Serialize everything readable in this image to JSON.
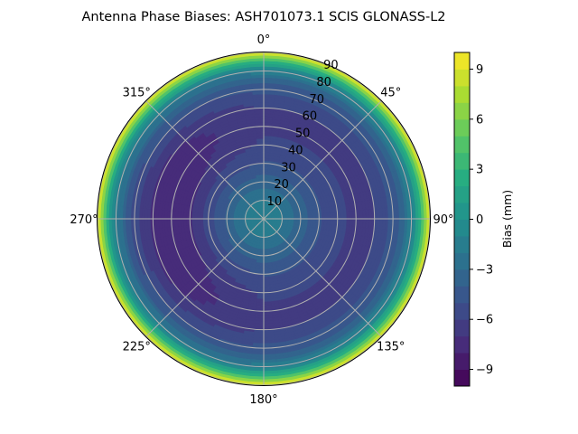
{
  "chart_data": {
    "type": "heatmap",
    "subtype": "polar-contour",
    "title": "Antenna Phase Biases: ASH701073.1     SCIS GLONASS-L2",
    "theta_tick_labels": [
      "0°",
      "45°",
      "90°",
      "135°",
      "180°",
      "225°",
      "270°",
      "315°"
    ],
    "theta_tick_values": [
      0,
      45,
      90,
      135,
      180,
      225,
      270,
      315
    ],
    "radial_tick_labels": [
      "10",
      "20",
      "30",
      "40",
      "50",
      "60",
      "70",
      "80",
      "90"
    ],
    "radial_tick_values": [
      10,
      20,
      30,
      40,
      50,
      60,
      70,
      80,
      90
    ],
    "rlim": [
      0,
      90
    ],
    "grid": true,
    "colorbar": {
      "label": "Bias (mm)",
      "range": [
        -10,
        10
      ],
      "levels_step": 1,
      "tick_values": [
        -9,
        -6,
        -3,
        0,
        3,
        6,
        9
      ],
      "tick_labels": [
        "−9",
        "−6",
        "−3",
        "0",
        "3",
        "6",
        "9"
      ],
      "colormap": "viridis"
    },
    "radial_profile": {
      "zenith_deg": [
        0,
        10,
        20,
        30,
        40,
        50,
        60,
        70,
        75,
        80,
        85,
        90
      ],
      "bias_mm": [
        -0.8,
        -1.8,
        -3.5,
        -5.0,
        -6.0,
        -6.4,
        -6.2,
        -4.8,
        -3.5,
        -1.5,
        2.5,
        10
      ]
    },
    "azimuthal_asymmetry": {
      "description": "darker (more negative) toward west",
      "min_azimuth_deg": 270,
      "amplitude_mm": 1.2
    }
  }
}
